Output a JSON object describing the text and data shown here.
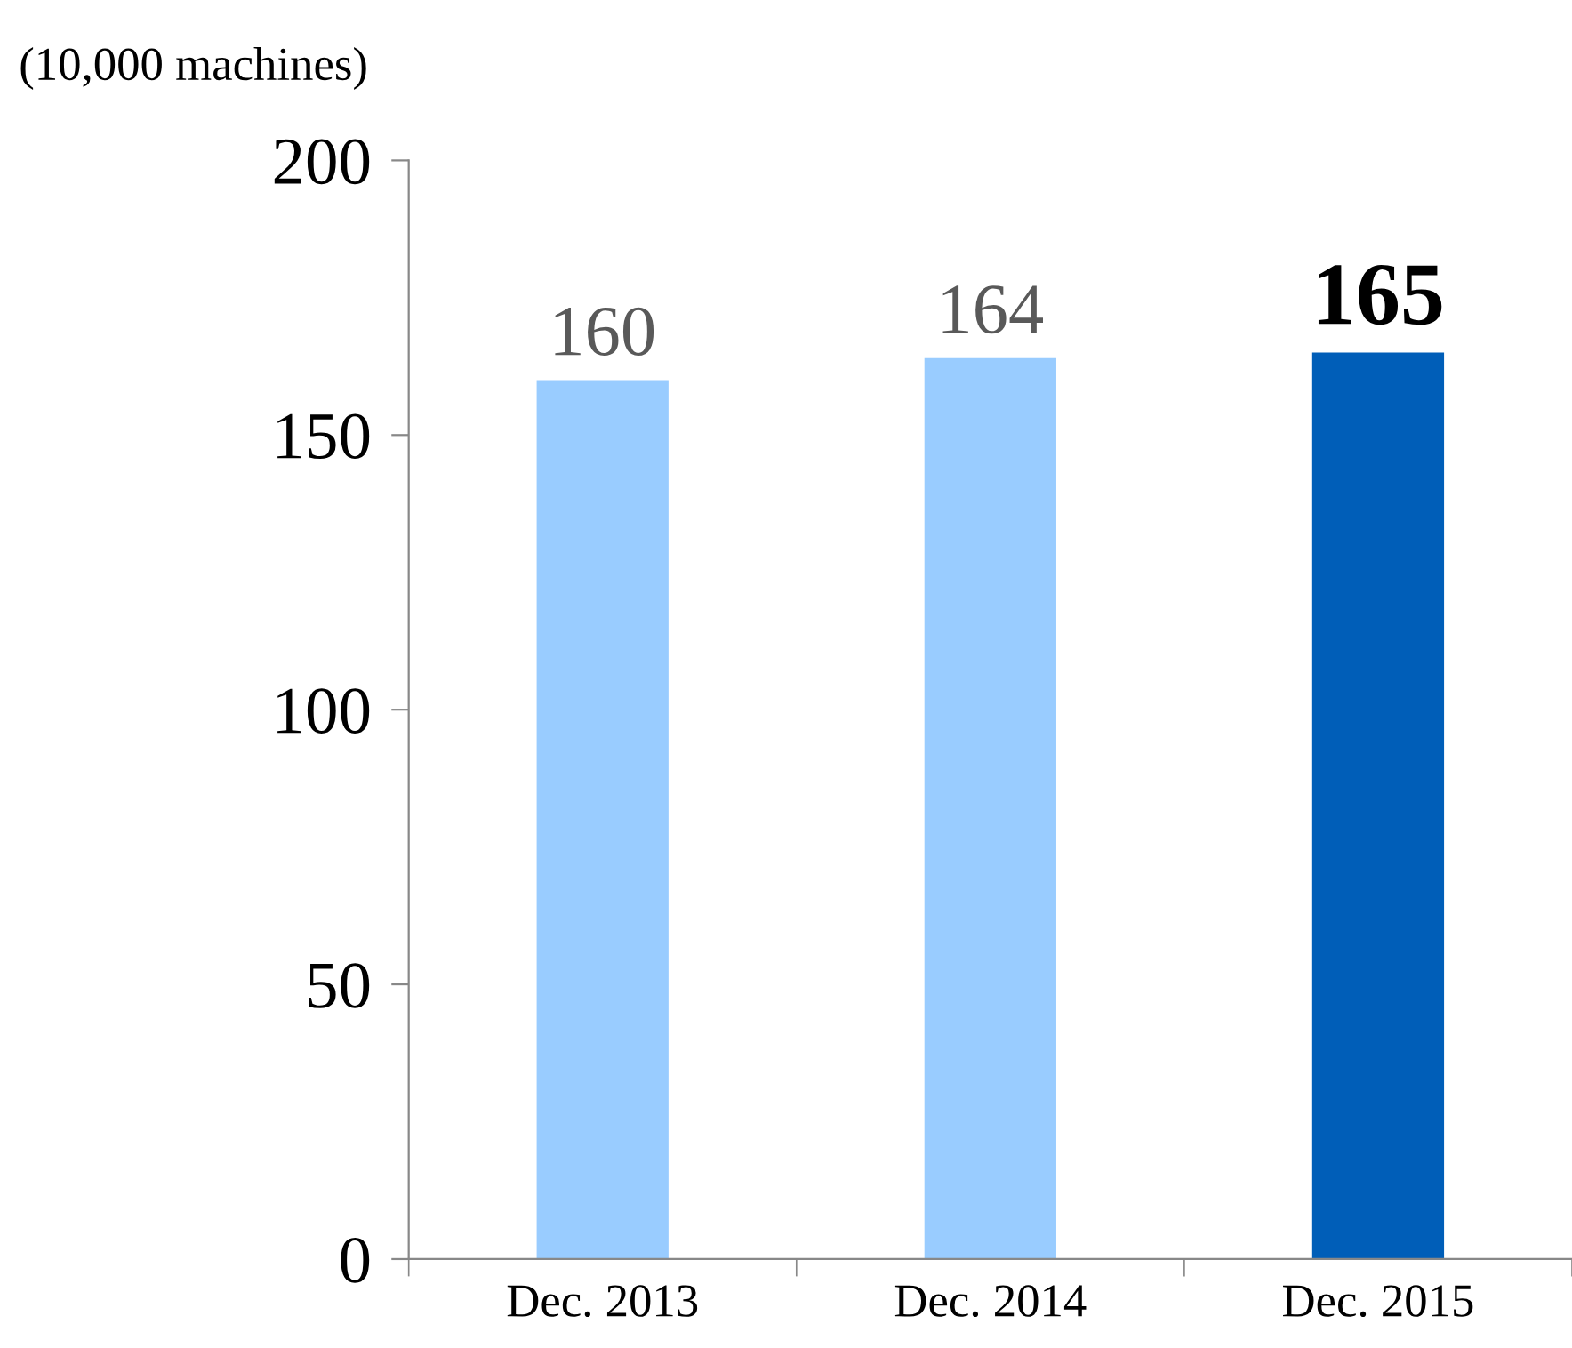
{
  "chart_data": {
    "type": "bar",
    "ylabel": "(10,000 machines)",
    "categories": [
      "Dec. 2013",
      "Dec. 2014",
      "Dec. 2015"
    ],
    "values": [
      160,
      164,
      165
    ],
    "colors": [
      "#99ccff",
      "#99ccff",
      "#005eb8"
    ],
    "ylim": [
      0,
      200
    ],
    "yticks": [
      0,
      50,
      100,
      150,
      200
    ],
    "data_labels": true,
    "grid": false,
    "legend": false
  }
}
